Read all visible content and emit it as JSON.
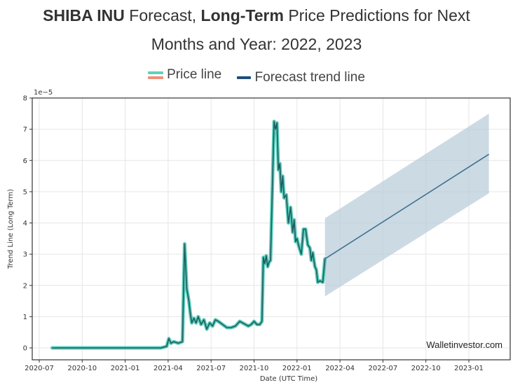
{
  "header": {
    "title_line1_bold1": "SHIBA INU",
    "title_line1_text1": " Forecast, ",
    "title_line1_bold2": "Long-Term",
    "title_line1_text2": " Price Predictions for Next",
    "title_line2": "Months and Year: 2022, 2023"
  },
  "legend": {
    "items": [
      {
        "label": "Price line",
        "colors": [
          "#5fd3b8",
          "#f0907a"
        ]
      },
      {
        "label": "Forecast trend line",
        "colors": [
          "#1f4e79"
        ]
      }
    ]
  },
  "watermark": "Walletinvestor.com",
  "colors": {
    "price_glow": "#49c7b0",
    "price_line": "#1b5e63",
    "forecast_line": "#3e7190",
    "band_fill": "#b7cbd8",
    "grid": "#e6e6e6",
    "frame": "#333333"
  },
  "chart_data": {
    "type": "line",
    "title": "SHIBA INU Forecast, Long-Term Price Predictions for Next Months and Year: 2022, 2023",
    "xlabel": "Date (UTC Time)",
    "ylabel": "Trend Line (Long Term)",
    "y_scale_label": "1e−5",
    "ylim": [
      -0.4,
      8
    ],
    "xlim_months_since_2020_07": [
      -0.5,
      32.2
    ],
    "y_ticks": [
      0,
      1,
      2,
      3,
      4,
      5,
      6,
      7,
      8
    ],
    "x_ticks": [
      {
        "label": "2020-07",
        "m": 0
      },
      {
        "label": "2020-10",
        "m": 3
      },
      {
        "label": "2021-01",
        "m": 6
      },
      {
        "label": "2021-04",
        "m": 9
      },
      {
        "label": "2021-07",
        "m": 12
      },
      {
        "label": "2021-10",
        "m": 15
      },
      {
        "label": "2022-01",
        "m": 18
      },
      {
        "label": "2022-04",
        "m": 21
      },
      {
        "label": "2022-07",
        "m": 24
      },
      {
        "label": "2022-10",
        "m": 27
      },
      {
        "label": "2023-01",
        "m": 30
      }
    ],
    "grid": true,
    "legend_position": "top-center",
    "x_unit": "months since 2020-07-01",
    "series": [
      {
        "name": "Price line",
        "points": [
          [
            0.9,
            0.0
          ],
          [
            3,
            0.0
          ],
          [
            6,
            0.0
          ],
          [
            8.5,
            0.0
          ],
          [
            8.9,
            0.05
          ],
          [
            9.05,
            0.3
          ],
          [
            9.2,
            0.15
          ],
          [
            9.4,
            0.2
          ],
          [
            9.7,
            0.15
          ],
          [
            10.0,
            0.2
          ],
          [
            10.15,
            3.33
          ],
          [
            10.3,
            1.9
          ],
          [
            10.45,
            1.5
          ],
          [
            10.55,
            1.1
          ],
          [
            10.65,
            0.8
          ],
          [
            10.8,
            0.95
          ],
          [
            10.95,
            0.8
          ],
          [
            11.1,
            1.0
          ],
          [
            11.3,
            0.75
          ],
          [
            11.5,
            0.9
          ],
          [
            11.7,
            0.6
          ],
          [
            11.9,
            0.8
          ],
          [
            12.1,
            0.7
          ],
          [
            12.3,
            0.9
          ],
          [
            12.5,
            0.85
          ],
          [
            12.8,
            0.75
          ],
          [
            13.1,
            0.65
          ],
          [
            13.4,
            0.65
          ],
          [
            13.7,
            0.7
          ],
          [
            14.0,
            0.85
          ],
          [
            14.2,
            0.8
          ],
          [
            14.4,
            0.75
          ],
          [
            14.6,
            0.7
          ],
          [
            14.8,
            0.75
          ],
          [
            15.0,
            0.85
          ],
          [
            15.2,
            0.75
          ],
          [
            15.4,
            0.75
          ],
          [
            15.55,
            0.85
          ],
          [
            15.65,
            2.9
          ],
          [
            15.75,
            2.7
          ],
          [
            15.85,
            2.95
          ],
          [
            15.95,
            2.6
          ],
          [
            16.05,
            2.75
          ],
          [
            16.15,
            2.8
          ],
          [
            16.3,
            5.5
          ],
          [
            16.4,
            7.25
          ],
          [
            16.5,
            7.0
          ],
          [
            16.6,
            7.2
          ],
          [
            16.7,
            5.7
          ],
          [
            16.8,
            5.9
          ],
          [
            16.9,
            5.0
          ],
          [
            17.0,
            5.5
          ],
          [
            17.1,
            4.8
          ],
          [
            17.25,
            4.9
          ],
          [
            17.4,
            4.0
          ],
          [
            17.55,
            4.5
          ],
          [
            17.7,
            3.7
          ],
          [
            17.8,
            4.1
          ],
          [
            17.9,
            3.4
          ],
          [
            18.0,
            3.5
          ],
          [
            18.1,
            3.3
          ],
          [
            18.3,
            3.0
          ],
          [
            18.45,
            3.8
          ],
          [
            18.6,
            3.8
          ],
          [
            18.75,
            3.3
          ],
          [
            18.9,
            3.2
          ],
          [
            19.0,
            2.8
          ],
          [
            19.1,
            3.05
          ],
          [
            19.25,
            2.6
          ],
          [
            19.35,
            2.5
          ],
          [
            19.45,
            2.1
          ],
          [
            19.6,
            2.15
          ],
          [
            19.8,
            2.1
          ],
          [
            19.95,
            2.85
          ]
        ]
      },
      {
        "name": "Forecast trend line",
        "points": [
          [
            19.95,
            2.85
          ],
          [
            31.4,
            6.2
          ]
        ]
      },
      {
        "name": "Forecast upper band",
        "points": [
          [
            19.95,
            4.15
          ],
          [
            31.4,
            7.5
          ]
        ]
      },
      {
        "name": "Forecast lower band",
        "points": [
          [
            19.95,
            1.65
          ],
          [
            31.4,
            4.95
          ]
        ]
      }
    ]
  }
}
